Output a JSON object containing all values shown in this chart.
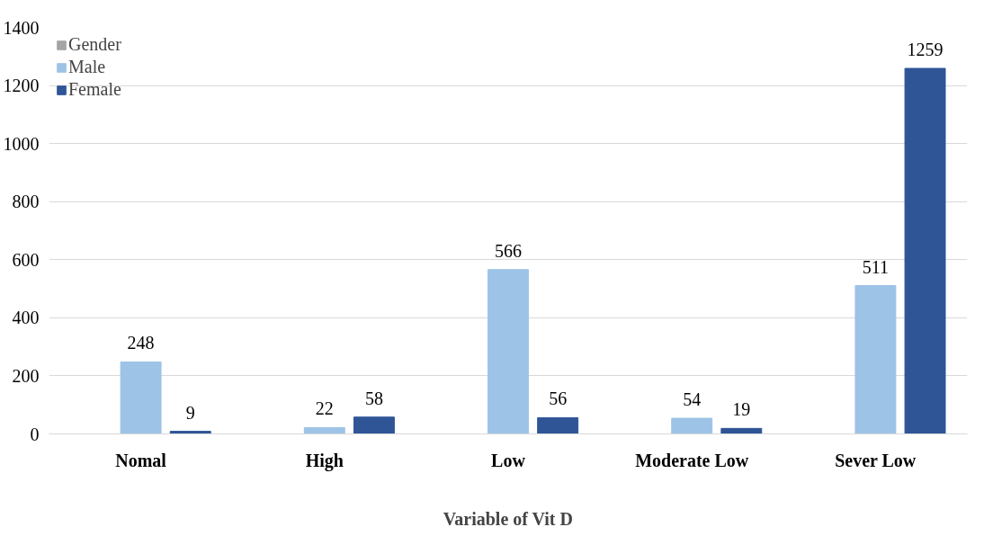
{
  "chart_data": {
    "type": "bar",
    "xlabel": "Variable of Vit D",
    "categories": [
      "Nomal",
      "High",
      "Low",
      "Moderate Low",
      "Sever Low"
    ],
    "series": [
      {
        "name": "Gender",
        "color": "#a5a5a5",
        "values": [
          null,
          null,
          null,
          null,
          null
        ]
      },
      {
        "name": "Male",
        "color": "#9dc3e6",
        "values": [
          248,
          22,
          566,
          54,
          511
        ]
      },
      {
        "name": "Female",
        "color": "#2f5597",
        "values": [
          9,
          58,
          56,
          19,
          1259
        ]
      }
    ],
    "ylim": [
      0,
      1400
    ],
    "yticks": [
      0,
      200,
      400,
      600,
      800,
      1000,
      1200,
      1400
    ],
    "grid": "y",
    "legend": "top left",
    "data_labels": true
  }
}
